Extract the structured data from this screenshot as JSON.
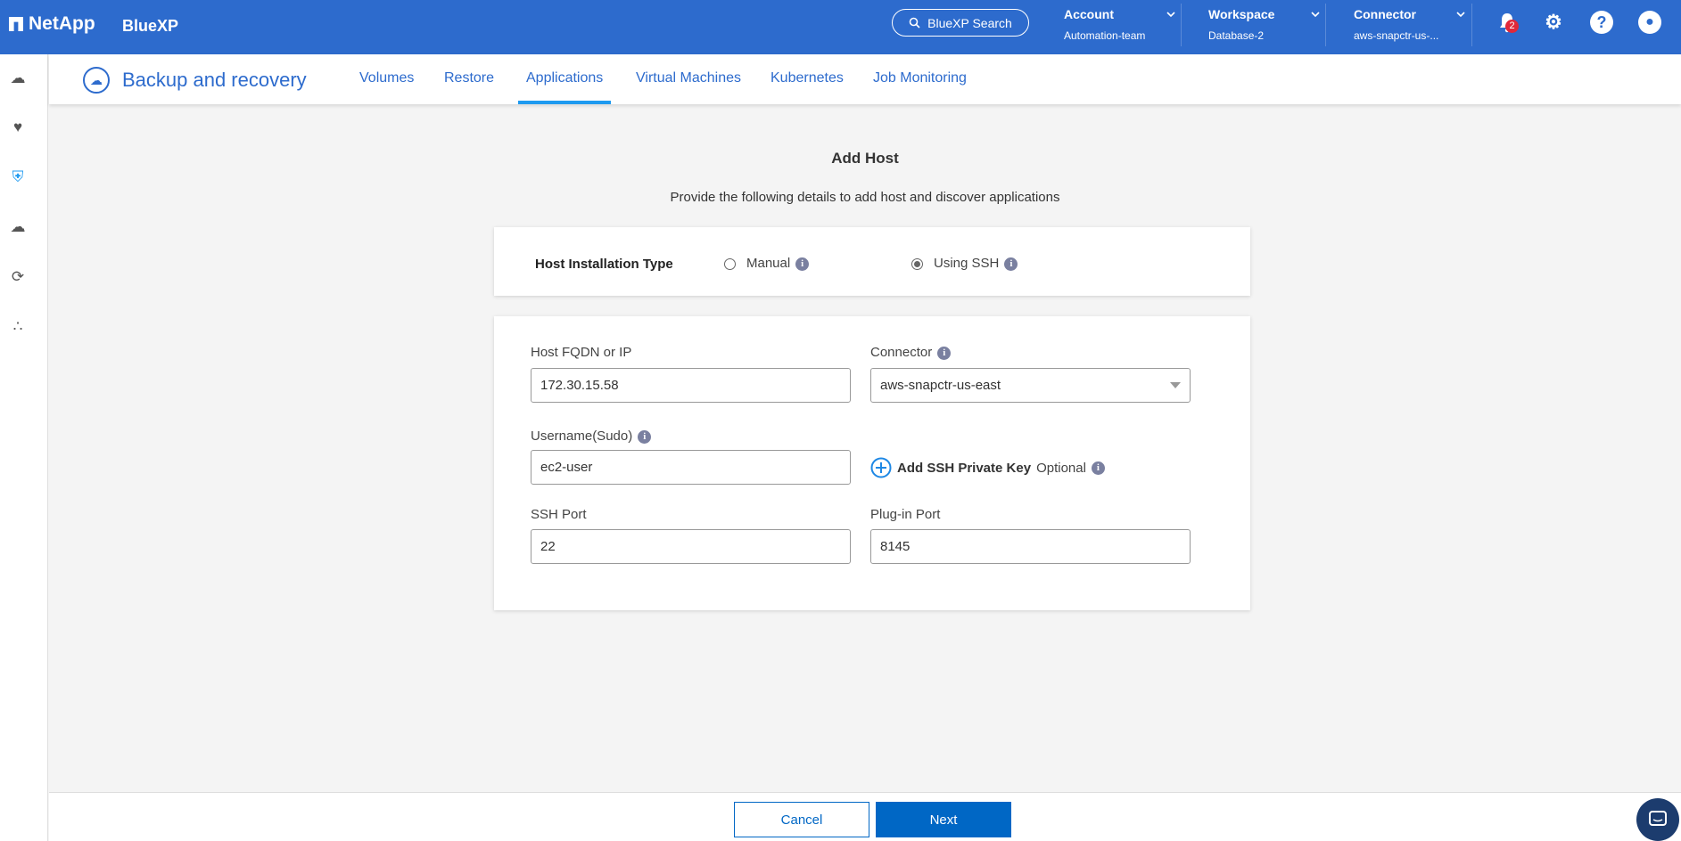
{
  "header": {
    "brand": "NetApp",
    "product": "BlueXP",
    "search_label": "BlueXP Search",
    "account": {
      "label": "Account",
      "value": "Automation-team"
    },
    "workspace": {
      "label": "Workspace",
      "value": "Database-2"
    },
    "connector": {
      "label": "Connector",
      "value": "aws-snapctr-us-..."
    },
    "notification_count": "2"
  },
  "service": {
    "title": "Backup and recovery",
    "tabs": [
      {
        "label": "Volumes"
      },
      {
        "label": "Restore"
      },
      {
        "label": "Applications",
        "active": true
      },
      {
        "label": "Virtual Machines"
      },
      {
        "label": "Kubernetes"
      },
      {
        "label": "Job Monitoring"
      }
    ]
  },
  "page": {
    "title": "Add Host",
    "subtitle": "Provide the following details to add host and discover applications"
  },
  "install_type": {
    "label": "Host Installation Type",
    "options": [
      {
        "label": "Manual",
        "selected": false
      },
      {
        "label": "Using SSH",
        "selected": true
      }
    ]
  },
  "form": {
    "host": {
      "label": "Host FQDN or IP",
      "value": "172.30.15.58"
    },
    "connector": {
      "label": "Connector",
      "value": "aws-snapctr-us-east"
    },
    "username": {
      "label": "Username(Sudo)",
      "value": "ec2-user"
    },
    "ssh_key": {
      "label": "Add SSH Private Key",
      "optional": "Optional"
    },
    "ssh_port": {
      "label": "SSH Port",
      "value": "22"
    },
    "plugin_port": {
      "label": "Plug-in Port",
      "value": "8145"
    }
  },
  "footer": {
    "cancel": "Cancel",
    "next": "Next"
  },
  "colors": {
    "header": "#2d6bcd",
    "primary": "#0067c5",
    "tab_active": "#1e9af0"
  }
}
